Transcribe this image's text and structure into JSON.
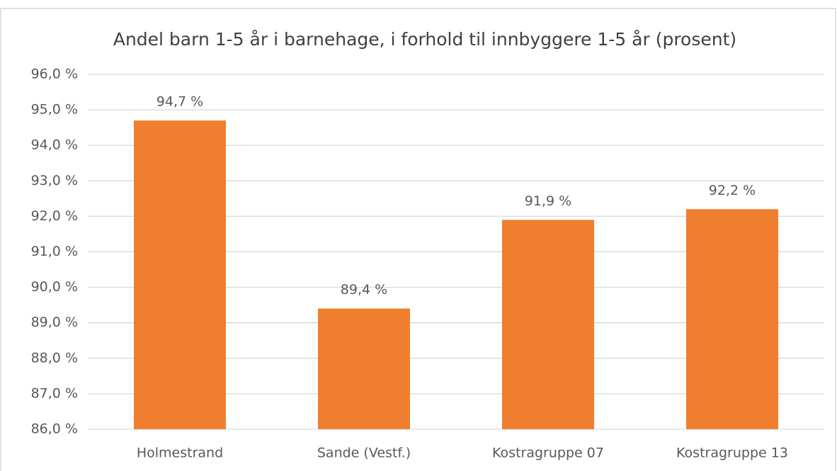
{
  "chart_data": {
    "type": "bar",
    "title": "Andel barn 1-5 år i barnehage, i forhold til innbyggere 1-5 år (prosent)",
    "categories": [
      "Holmestrand",
      "Sande (Vestf.)",
      "Kostragruppe 07",
      "Kostragruppe 13"
    ],
    "values": [
      94.7,
      89.4,
      91.9,
      92.2
    ],
    "value_labels": [
      "94,7 %",
      "89,4 %",
      "91,9 %",
      "92,2 %"
    ],
    "color": "#ef7f2e",
    "ylim": [
      86,
      96
    ],
    "yticks": [
      {
        "value": 86,
        "label": "86,0 %"
      },
      {
        "value": 87,
        "label": "87,0 %"
      },
      {
        "value": 88,
        "label": "88,0 %"
      },
      {
        "value": 89,
        "label": "89,0 %"
      },
      {
        "value": 90,
        "label": "90,0 %"
      },
      {
        "value": 91,
        "label": "91,0 %"
      },
      {
        "value": 92,
        "label": "92,0 %"
      },
      {
        "value": 93,
        "label": "93,0 %"
      },
      {
        "value": 94,
        "label": "94,0 %"
      },
      {
        "value": 95,
        "label": "95,0 %"
      },
      {
        "value": 96,
        "label": "96,0 %"
      }
    ],
    "grid": true
  }
}
